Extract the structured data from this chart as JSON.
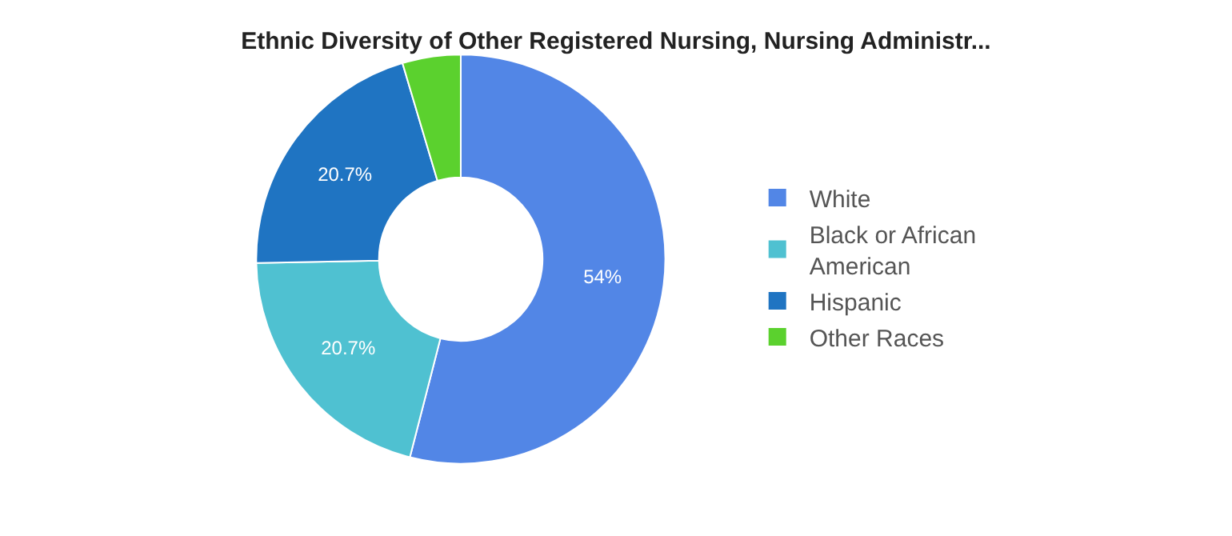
{
  "chart_data": {
    "type": "donut",
    "title": "Ethnic Diversity of Other Registered Nursing, Nursing Administr...",
    "categories": [
      "White",
      "Black or African American",
      "Hispanic",
      "Other Races"
    ],
    "values": [
      54,
      20.7,
      20.7,
      4.6
    ],
    "colors": [
      "#5286e6",
      "#4fc1d1",
      "#1f74c2",
      "#5bd12e"
    ],
    "value_labels": [
      "54%",
      "20.7%",
      "20.7%",
      null
    ],
    "legend": "right"
  }
}
